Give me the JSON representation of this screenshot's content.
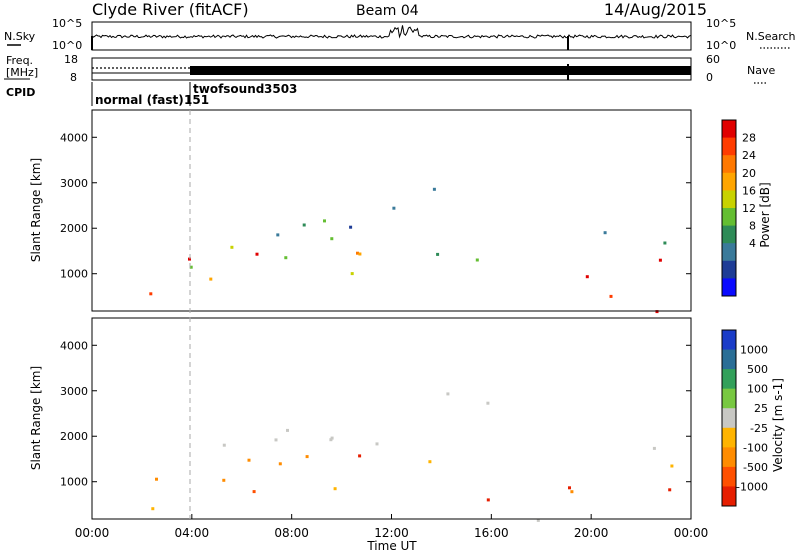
{
  "header": {
    "station": "Clyde River (fitACF)",
    "beam": "Beam 04",
    "date": "14/Aug/2015"
  },
  "chart_data": [
    {
      "type": "line",
      "name": "noise-panel",
      "left_label": "N.Sky",
      "right_label": "N.Search",
      "left_ticks": [
        "10^5",
        "10^0"
      ],
      "right_ticks": [
        "10^5",
        "10^0"
      ]
    },
    {
      "type": "line",
      "name": "frequency-panel",
      "left_label": "Freq.",
      "left_unit": "[MHz]",
      "right_label": "Nave",
      "left_ticks": [
        "18",
        "8"
      ],
      "right_ticks": [
        "60",
        "0"
      ]
    },
    {
      "type": "table",
      "name": "cpid-panel",
      "label": "CPID",
      "segments": [
        {
          "start": "00:00",
          "label": "normal (fast)",
          "cpid": "151"
        },
        {
          "start": "04:00",
          "label": "twofsound",
          "cpid": "3503"
        }
      ]
    },
    {
      "type": "heatmap",
      "name": "power-panel",
      "ylabel": "Slant Range [km]",
      "ylim": [
        180,
        4600
      ],
      "yticks": [
        1000,
        2000,
        3000,
        4000
      ],
      "colorbar": {
        "label": "Power [dB]",
        "ticks": [
          "28",
          "24",
          "20",
          "16",
          "12",
          "8",
          "4"
        ],
        "colors": [
          "#e00000",
          "#ff3c00",
          "#ff7800",
          "#ffa500",
          "#c8d200",
          "#64be32",
          "#2e8b57",
          "#3a7a9a",
          "#1e3c96",
          "#0a0aff"
        ]
      }
    },
    {
      "type": "heatmap",
      "name": "velocity-panel",
      "ylabel": "Slant Range [km]",
      "xlabel": "Time UT",
      "ylim": [
        180,
        4600
      ],
      "yticks": [
        1000,
        2000,
        3000,
        4000
      ],
      "xticks": [
        "00:00",
        "04:00",
        "08:00",
        "12:00",
        "16:00",
        "20:00",
        "00:00"
      ],
      "colorbar": {
        "label": "Velocity [m s-1]",
        "ticks": [
          "1000",
          "500",
          "100",
          "25",
          "-25",
          "-100",
          "-500",
          "-1000"
        ],
        "colors": [
          "#1a3cc8",
          "#2a6e96",
          "#32a05a",
          "#78c841",
          "#c8c8c4",
          "#ffb400",
          "#ff8c00",
          "#ff5000",
          "#e61e00"
        ]
      }
    }
  ]
}
